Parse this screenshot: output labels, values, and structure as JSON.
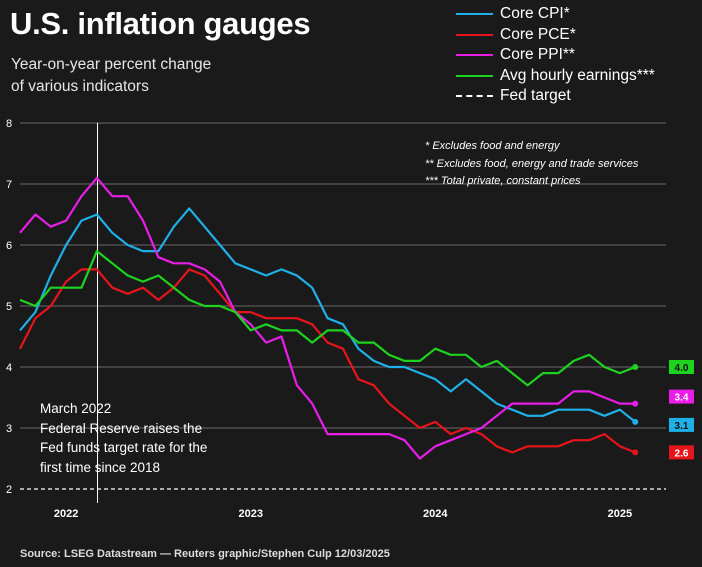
{
  "title": "U.S. inflation gauges",
  "subtitle_lines": [
    "Year-on-year percent change",
    "of various indicators"
  ],
  "notes": [
    "* Excludes food and energy",
    "** Excludes food, energy and trade services",
    "*** Total private, constant prices"
  ],
  "annotation_lines": [
    "March 2022",
    "Federal Reserve raises the",
    "Fed funds target rate for the",
    "first time since 2018"
  ],
  "source": "Source: LSEG Datastream — Reuters graphic/Stephen Culp 12/03/2025",
  "legend": [
    {
      "label": "Core CPI*",
      "color": "#1fb0e8",
      "style": "solid"
    },
    {
      "label": "Core PCE*",
      "color": "#e8141b",
      "style": "solid"
    },
    {
      "label": "Core PPI**",
      "color": "#e81ee8",
      "style": "solid"
    },
    {
      "label": "Avg hourly earnings***",
      "color": "#1ed31e",
      "style": "solid"
    },
    {
      "label": "Fed target",
      "color": "#ffffff",
      "style": "dashed"
    }
  ],
  "chart_data": {
    "type": "line",
    "ylim": [
      2,
      8
    ],
    "yticks": [
      2,
      3,
      4,
      5,
      6,
      7,
      8
    ],
    "xlim": [
      2021.75,
      2025.25
    ],
    "xticks": [
      {
        "label": "2022",
        "x": 2022.0
      },
      {
        "label": "2023",
        "x": 2023.0
      },
      {
        "label": "2024",
        "x": 2024.0
      },
      {
        "label": "2025",
        "x": 2025.0
      }
    ],
    "fed_target": 2,
    "annotation_x": 2022.17,
    "start_date": "2021-10",
    "series": [
      {
        "name": "Core CPI*",
        "color": "#1fb0e8",
        "end_label": "3.1",
        "values": [
          4.6,
          4.9,
          5.5,
          6.0,
          6.4,
          6.5,
          6.2,
          6.0,
          5.9,
          5.9,
          6.3,
          6.6,
          6.3,
          6.0,
          5.7,
          5.6,
          5.5,
          5.6,
          5.5,
          5.3,
          4.8,
          4.7,
          4.3,
          4.1,
          4.0,
          4.0,
          3.9,
          3.8,
          3.6,
          3.8,
          3.6,
          3.4,
          3.3,
          3.2,
          3.2,
          3.3,
          3.3,
          3.3,
          3.2,
          3.3,
          3.1
        ]
      },
      {
        "name": "Core PCE*",
        "color": "#e8141b",
        "end_label": "2.6",
        "values": [
          4.3,
          4.8,
          5.0,
          5.4,
          5.6,
          5.6,
          5.3,
          5.2,
          5.3,
          5.1,
          5.3,
          5.6,
          5.5,
          5.2,
          4.9,
          4.9,
          4.8,
          4.8,
          4.8,
          4.7,
          4.4,
          4.3,
          3.8,
          3.7,
          3.4,
          3.2,
          3.0,
          3.1,
          2.9,
          3.0,
          2.9,
          2.7,
          2.6,
          2.7,
          2.7,
          2.7,
          2.8,
          2.8,
          2.9,
          2.7,
          2.6
        ]
      },
      {
        "name": "Core PPI**",
        "color": "#e81ee8",
        "end_label": "3.4",
        "values": [
          6.2,
          6.5,
          6.3,
          6.4,
          6.8,
          7.1,
          6.8,
          6.8,
          6.4,
          5.8,
          5.7,
          5.7,
          5.6,
          5.4,
          4.9,
          4.7,
          4.4,
          4.5,
          3.7,
          3.4,
          2.9,
          2.9,
          2.9,
          2.9,
          2.9,
          2.8,
          2.5,
          2.7,
          2.8,
          2.9,
          3.0,
          3.2,
          3.4,
          3.4,
          3.4,
          3.4,
          3.6,
          3.6,
          3.5,
          3.4,
          3.4
        ]
      },
      {
        "name": "Avg hourly earnings***",
        "color": "#1ed31e",
        "end_label": "4.0",
        "values": [
          5.1,
          5.0,
          5.3,
          5.3,
          5.3,
          5.9,
          5.7,
          5.5,
          5.4,
          5.5,
          5.3,
          5.1,
          5.0,
          5.0,
          4.9,
          4.6,
          4.7,
          4.6,
          4.6,
          4.4,
          4.6,
          4.6,
          4.4,
          4.4,
          4.2,
          4.1,
          4.1,
          4.3,
          4.2,
          4.2,
          4.0,
          4.1,
          3.9,
          3.7,
          3.9,
          3.9,
          4.1,
          4.2,
          4.0,
          3.9,
          4.0
        ]
      }
    ]
  }
}
